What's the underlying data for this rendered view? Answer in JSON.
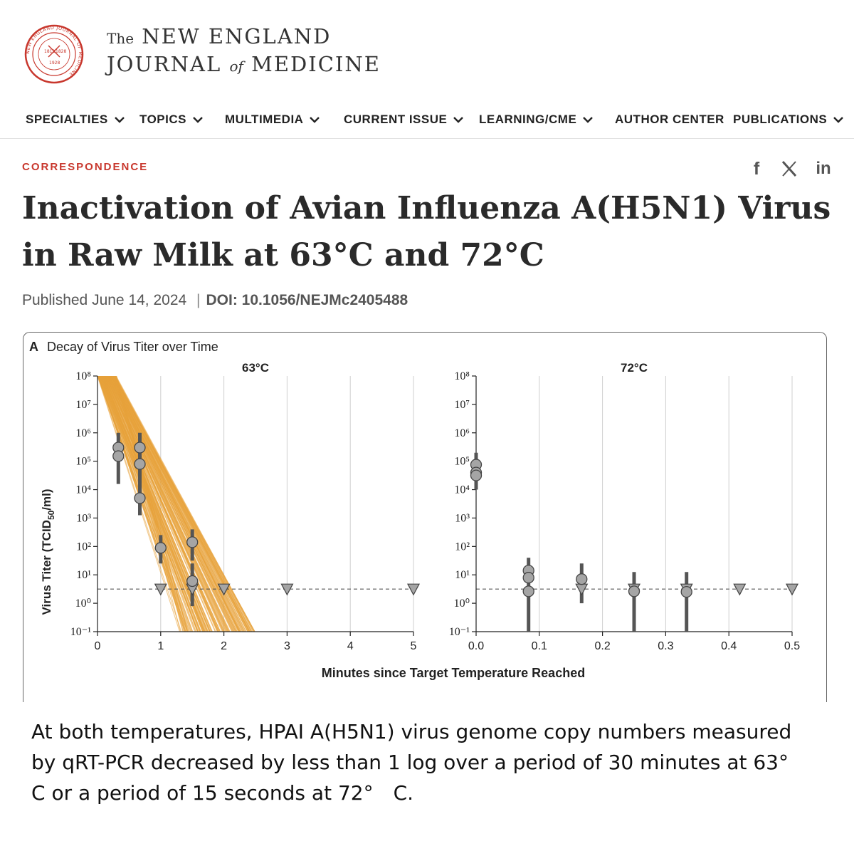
{
  "masthead": {
    "logo_icon": "nejm-seal-icon",
    "brand_the": "The",
    "brand_line1": "NEW ENGLAND",
    "brand_journal": "JOURNAL",
    "brand_of": "of",
    "brand_medicine": "MEDICINE",
    "seal_year_left": "1812",
    "seal_year_right": "1828",
    "seal_year_bottom": "1928",
    "seal_text": "NEW ENGLAND JOURNAL OF MEDICINE"
  },
  "nav": {
    "items": [
      {
        "label": "SPECIALTIES",
        "has_dropdown": true
      },
      {
        "label": "TOPICS",
        "has_dropdown": true
      },
      {
        "label": "MULTIMEDIA",
        "has_dropdown": true
      },
      {
        "label": "CURRENT ISSUE",
        "has_dropdown": true
      },
      {
        "label": "LEARNING/CME",
        "has_dropdown": true
      },
      {
        "label": "AUTHOR CENTER",
        "has_dropdown": false
      },
      {
        "label": "PUBLICATIONS",
        "has_dropdown": true
      }
    ]
  },
  "article": {
    "section": "CORRESPONDENCE",
    "title": "Inactivation of Avian Influenza A(H5N1) Virus in Raw Milk at 63°C and 72°C",
    "published_label": "Published",
    "published_date": "June 14, 2024",
    "separator": "|",
    "doi": "DOI: 10.1056/NEJMc2405488"
  },
  "share": {
    "facebook_label": "f",
    "facebook_icon": "facebook-icon",
    "x_icon": "x-icon",
    "linkedin_label": "in",
    "linkedin_icon": "linkedin-icon"
  },
  "figure": {
    "panel_letter": "A",
    "panel_title": "Decay of Virus Titer over Time",
    "xlabel": "Minutes since Target Temperature Reached",
    "ylabel_main": "Virus Titer (TCID",
    "ylabel_sub": "50",
    "ylabel_end": "/ml)"
  },
  "chart_data": [
    {
      "type": "scatter",
      "title": "63°C",
      "x_ticks": [
        "0",
        "1",
        "2",
        "3",
        "4",
        "5"
      ],
      "y_ticks": [
        "10⁻¹",
        "10⁰",
        "10¹",
        "10²",
        "10³",
        "10⁴",
        "10⁵",
        "10⁶",
        "10⁷",
        "10⁸"
      ],
      "xlim": [
        0,
        5
      ],
      "ylim_log10": [
        -1,
        8
      ],
      "log_scale_y": true,
      "grid": true,
      "detection_limit_log10": 0.5,
      "fit_band": {
        "color": "#e8a23a",
        "description_count": 160,
        "start_x_range": [
          0,
          0.3
        ],
        "end_x_range": [
          1.3,
          2.5
        ],
        "start_log10": 8,
        "end_log10": -1
      },
      "points": [
        {
          "x": 0.33,
          "log10": 5.48,
          "ci": [
            4.2,
            6.0
          ]
        },
        {
          "x": 0.33,
          "log10": 5.18,
          "ci": [
            4.2,
            6.0
          ]
        },
        {
          "x": 0.67,
          "log10": 5.48,
          "ci": [
            4.8,
            6.0
          ]
        },
        {
          "x": 0.67,
          "log10": 4.9,
          "ci": [
            4.2,
            5.6
          ]
        },
        {
          "x": 0.67,
          "log10": 3.7,
          "ci": [
            3.1,
            4.3
          ]
        },
        {
          "x": 1.0,
          "log10": 1.95,
          "ci": [
            1.4,
            2.4
          ]
        },
        {
          "x": 1.5,
          "log10": 2.15,
          "ci": [
            1.5,
            2.6
          ]
        },
        {
          "x": 1.5,
          "log10": 0.78,
          "ci": [
            0.1,
            1.4
          ]
        }
      ],
      "below_limit": [
        {
          "x": 1.0,
          "log10": 0.5
        },
        {
          "x": 1.5,
          "log10": 0.5
        },
        {
          "x": 2.0,
          "log10": 0.5
        },
        {
          "x": 3.0,
          "log10": 0.5
        },
        {
          "x": 5.0,
          "log10": 0.5
        }
      ],
      "below_limit_ci": [
        {
          "x": 1.5,
          "ci": [
            -0.1,
            1.0
          ]
        }
      ]
    },
    {
      "type": "scatter",
      "title": "72°C",
      "x_ticks": [
        "0.0",
        "0.1",
        "0.2",
        "0.3",
        "0.4",
        "0.5"
      ],
      "y_ticks": [
        "10⁻¹",
        "10⁰",
        "10¹",
        "10²",
        "10³",
        "10⁴",
        "10⁵",
        "10⁶",
        "10⁷",
        "10⁸"
      ],
      "xlim": [
        0,
        0.5
      ],
      "ylim_log10": [
        -1,
        8
      ],
      "log_scale_y": true,
      "grid": true,
      "detection_limit_log10": 0.5,
      "points": [
        {
          "x": 0.0,
          "log10": 4.88,
          "ci": [
            4.0,
            5.3
          ]
        },
        {
          "x": 0.0,
          "log10": 4.6,
          "ci": [
            4.0,
            5.3
          ]
        },
        {
          "x": 0.0,
          "log10": 4.5,
          "ci": [
            4.0,
            5.3
          ]
        },
        {
          "x": 0.083,
          "log10": 1.15,
          "ci": [
            -1.0,
            1.6
          ]
        },
        {
          "x": 0.083,
          "log10": 0.9,
          "ci": [
            -1.0,
            1.6
          ]
        },
        {
          "x": 0.083,
          "log10": 0.42,
          "ci": [
            -1.0,
            1.6
          ]
        },
        {
          "x": 0.167,
          "log10": 0.85,
          "ci": [
            0.0,
            1.4
          ]
        },
        {
          "x": 0.25,
          "log10": 0.42,
          "ci": [
            -1.0,
            1.1
          ]
        },
        {
          "x": 0.333,
          "log10": 0.4,
          "ci": [
            -1.0,
            1.1
          ]
        }
      ],
      "below_limit": [
        {
          "x": 0.167,
          "log10": 0.5
        },
        {
          "x": 0.25,
          "log10": 0.5
        },
        {
          "x": 0.333,
          "log10": 0.5
        },
        {
          "x": 0.417,
          "log10": 0.5
        },
        {
          "x": 0.5,
          "log10": 0.5
        }
      ]
    }
  ],
  "caption": "At both temperatures, HPAI A(H5N1) virus genome copy numbers measured by qRT-PCR decreased by less than 1 log over a period of 30 minutes at 63°　C or a period of 15 seconds at 72°　C."
}
